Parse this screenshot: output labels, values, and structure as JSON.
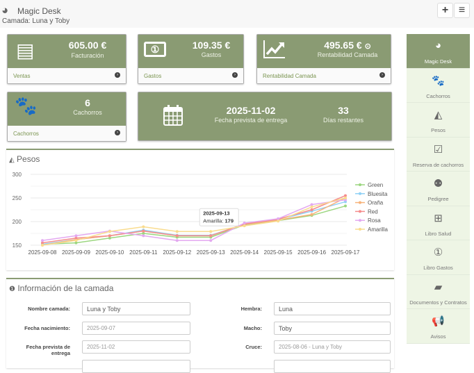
{
  "header": {
    "app_title": "Magic Desk",
    "subtitle": "Camada: Luna y Toby",
    "add_button": "+",
    "menu_button": "≡",
    "logo_icon": "dashboard-icon"
  },
  "cards": [
    {
      "icon": "file-icon",
      "value": "605.00 €",
      "label": "Facturación",
      "footer": "Ventas"
    },
    {
      "icon": "money-icon",
      "value": "109.35 €",
      "label": "Gastos",
      "footer": "Gastos"
    },
    {
      "icon": "line-chart-icon",
      "value": "495.65 €",
      "label": "Rentabilidad Camada",
      "footer": "Rentabilidad Camada"
    },
    {
      "icon": "paw-icon",
      "value": "6",
      "label": "Cachorros",
      "footer": "Cachorros"
    }
  ],
  "delivery": {
    "icon": "calendar-icon",
    "date": "2025-11-02",
    "date_label": "Fecha prevista de entrega",
    "days": "33",
    "days_label": "Días restantes"
  },
  "pesos_panel": {
    "title": "Pesos"
  },
  "chart_data": {
    "type": "line",
    "x": [
      "2025-09-08",
      "2025-09-09",
      "2025-09-10",
      "2025-09-11",
      "2025-09-12",
      "2025-09-13",
      "2025-09-14",
      "2025-09-15",
      "2025-09-16",
      "2025-09-17"
    ],
    "ylim": [
      150,
      300
    ],
    "yticks": [
      150,
      200,
      250,
      300
    ],
    "grid": true,
    "legend": "right",
    "series": [
      {
        "name": "Green",
        "color": "#9bd67f",
        "values": [
          152,
          155,
          165,
          175,
          167,
          167,
          193,
          202,
          213,
          233
        ]
      },
      {
        "name": "Bluesita",
        "color": "#8fd1f5",
        "values": [
          152,
          162,
          170,
          182,
          171,
          171,
          194,
          204,
          222,
          242
        ]
      },
      {
        "name": "Oraña",
        "color": "#f7b27a",
        "values": [
          150,
          162,
          170,
          180,
          170,
          170,
          194,
          203,
          215,
          250
        ]
      },
      {
        "name": "Red",
        "color": "#f58c8c",
        "values": [
          155,
          165,
          170,
          180,
          170,
          170,
          195,
          205,
          225,
          255
        ]
      },
      {
        "name": "Rosa",
        "color": "#e3a8f0",
        "values": [
          160,
          170,
          180,
          170,
          160,
          160,
          197,
          206,
          236,
          246
        ]
      },
      {
        "name": "Amarilla",
        "color": "#f9dc8e",
        "values": [
          150,
          160,
          179,
          189,
          179,
          179,
          191,
          201,
          231,
          250
        ]
      }
    ],
    "tooltip": {
      "date": "2025-09-13",
      "series": "Amarilla",
      "value": "179"
    }
  },
  "info_panel": {
    "title": "Información de la camada",
    "fields_left": [
      {
        "label": "Nombre camada:",
        "value": "Luna y Toby"
      },
      {
        "label": "Fecha nacimiento:",
        "value": "2025-09-07"
      },
      {
        "label": "Fecha prevista de entrega",
        "value": "2025-11-02"
      }
    ],
    "fields_right": [
      {
        "label": "Hembra:",
        "value": "Luna"
      },
      {
        "label": "Macho:",
        "value": "Toby"
      },
      {
        "label": "Cruce:",
        "value": "2025-08-06 - Luna y Toby"
      }
    ]
  },
  "sidebar": {
    "items": [
      {
        "label": "Magic Desk",
        "icon": "dashboard-icon",
        "active": true
      },
      {
        "label": "Cachorros",
        "icon": "paw-icon"
      },
      {
        "label": "Pesos",
        "icon": "area-chart-icon"
      },
      {
        "label": "Reserva de cachorros",
        "icon": "calendar-check-icon"
      },
      {
        "label": "Pedigree",
        "icon": "sitemap-icon"
      },
      {
        "label": "Libro Salud",
        "icon": "medkit-icon"
      },
      {
        "label": "Libro Gastos",
        "icon": "money-icon"
      },
      {
        "label": "Documentos y Contratos",
        "icon": "book-icon"
      },
      {
        "label": "Avisos",
        "icon": "bullhorn-icon"
      }
    ]
  }
}
